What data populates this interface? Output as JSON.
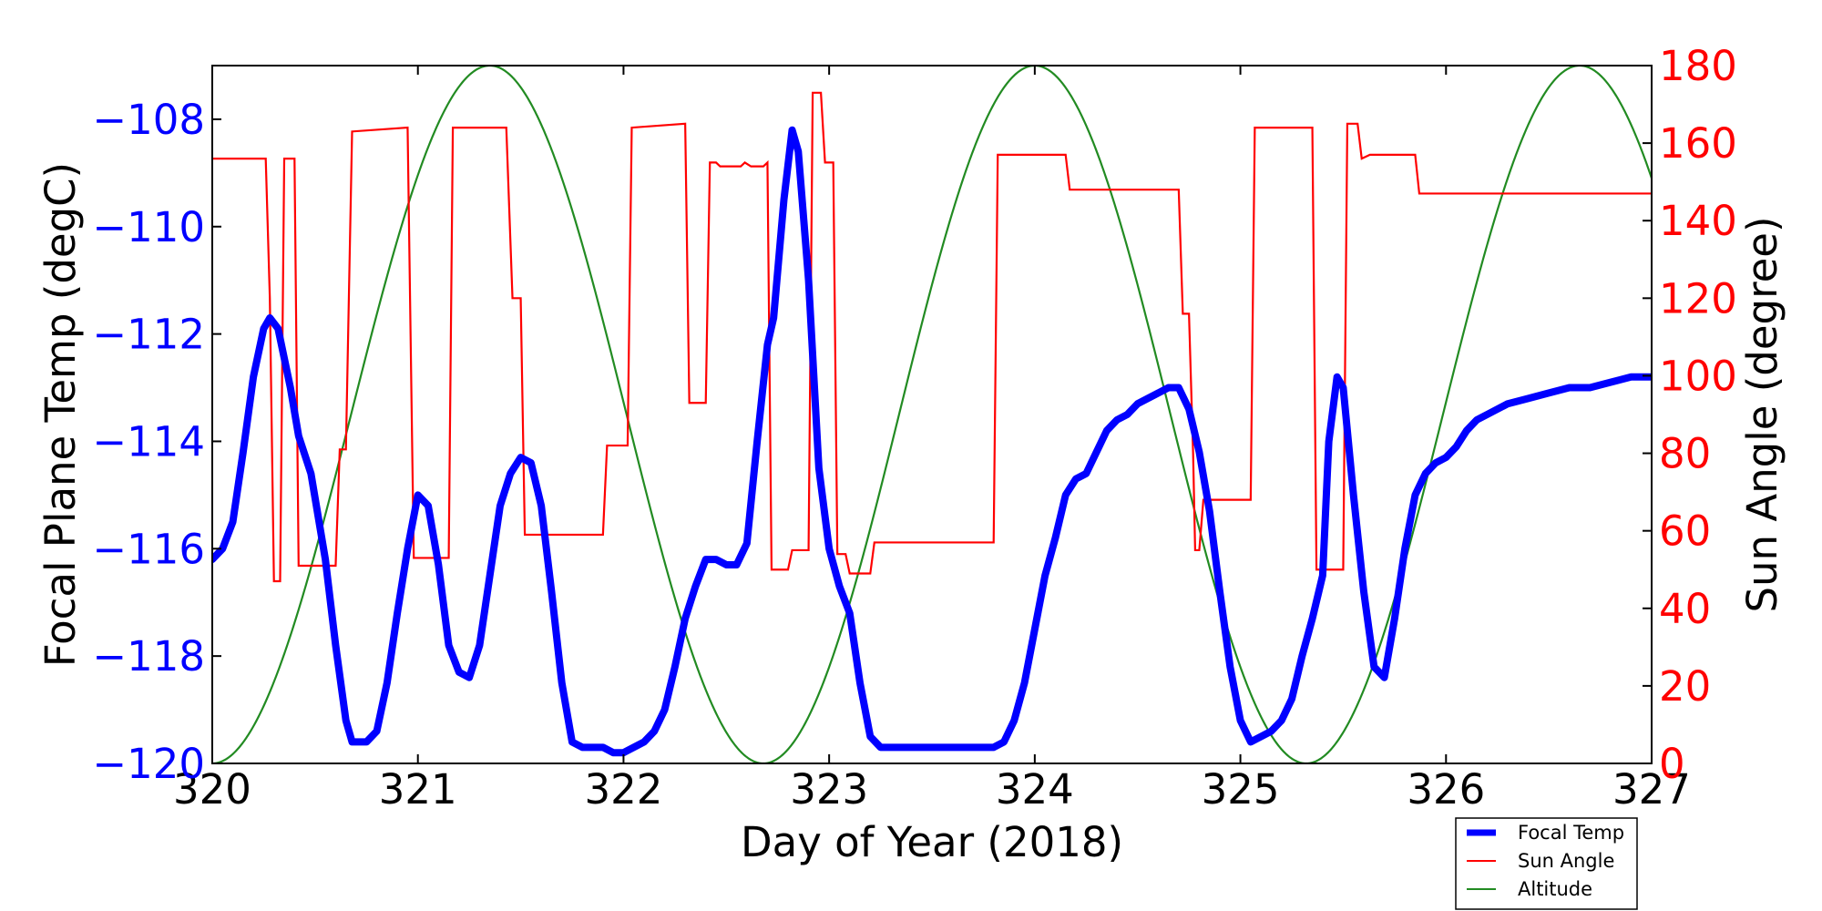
{
  "chart_data": {
    "type": "line",
    "title": "",
    "xlabel": "Day of Year (2018)",
    "ylabel_left": "Focal Plane Temp (degC)",
    "ylabel_right": "Sun Angle (degree)",
    "xlim": [
      320,
      327
    ],
    "ylim_left": [
      -120,
      -107
    ],
    "ylim_right": [
      0,
      180
    ],
    "xticks": [
      "320",
      "321",
      "322",
      "323",
      "324",
      "325",
      "326",
      "327"
    ],
    "yticks_left": [
      "−120",
      "−118",
      "−116",
      "−114",
      "−112",
      "−110",
      "−108"
    ],
    "yticks_right": [
      "0",
      "20",
      "40",
      "60",
      "80",
      "100",
      "120",
      "140",
      "160",
      "180"
    ],
    "grid": false,
    "legend_position": "bottom-right",
    "colors": {
      "focal": "#0000ff",
      "sun": "#ff0000",
      "altitude": "#228b22",
      "axes": "#000000"
    },
    "series": [
      {
        "name": "Focal Temp",
        "axis": "left",
        "points": [
          [
            320.0,
            -116.2
          ],
          [
            320.05,
            -116.0
          ],
          [
            320.1,
            -115.5
          ],
          [
            320.15,
            -114.2
          ],
          [
            320.2,
            -112.8
          ],
          [
            320.25,
            -111.9
          ],
          [
            320.28,
            -111.7
          ],
          [
            320.32,
            -111.9
          ],
          [
            320.38,
            -113.0
          ],
          [
            320.42,
            -113.9
          ],
          [
            320.48,
            -114.6
          ],
          [
            320.55,
            -116.2
          ],
          [
            320.6,
            -117.8
          ],
          [
            320.65,
            -119.2
          ],
          [
            320.68,
            -119.6
          ],
          [
            320.75,
            -119.6
          ],
          [
            320.8,
            -119.4
          ],
          [
            320.85,
            -118.5
          ],
          [
            320.9,
            -117.2
          ],
          [
            320.95,
            -116.0
          ],
          [
            321.0,
            -115.0
          ],
          [
            321.05,
            -115.2
          ],
          [
            321.1,
            -116.3
          ],
          [
            321.15,
            -117.8
          ],
          [
            321.2,
            -118.3
          ],
          [
            321.25,
            -118.4
          ],
          [
            321.3,
            -117.8
          ],
          [
            321.35,
            -116.5
          ],
          [
            321.4,
            -115.2
          ],
          [
            321.45,
            -114.6
          ],
          [
            321.5,
            -114.3
          ],
          [
            321.55,
            -114.4
          ],
          [
            321.6,
            -115.2
          ],
          [
            321.65,
            -116.8
          ],
          [
            321.7,
            -118.5
          ],
          [
            321.75,
            -119.6
          ],
          [
            321.8,
            -119.7
          ],
          [
            321.9,
            -119.7
          ],
          [
            321.95,
            -119.8
          ],
          [
            322.0,
            -119.8
          ],
          [
            322.05,
            -119.7
          ],
          [
            322.1,
            -119.6
          ],
          [
            322.15,
            -119.4
          ],
          [
            322.2,
            -119.0
          ],
          [
            322.25,
            -118.2
          ],
          [
            322.3,
            -117.3
          ],
          [
            322.35,
            -116.7
          ],
          [
            322.4,
            -116.2
          ],
          [
            322.45,
            -116.2
          ],
          [
            322.5,
            -116.3
          ],
          [
            322.55,
            -116.3
          ],
          [
            322.6,
            -115.9
          ],
          [
            322.65,
            -114.0
          ],
          [
            322.7,
            -112.2
          ],
          [
            322.73,
            -111.7
          ],
          [
            322.78,
            -109.5
          ],
          [
            322.82,
            -108.2
          ],
          [
            322.85,
            -108.6
          ],
          [
            322.9,
            -111.0
          ],
          [
            322.95,
            -114.5
          ],
          [
            323.0,
            -116.0
          ],
          [
            323.05,
            -116.7
          ],
          [
            323.1,
            -117.2
          ],
          [
            323.15,
            -118.5
          ],
          [
            323.2,
            -119.5
          ],
          [
            323.25,
            -119.7
          ],
          [
            323.4,
            -119.7
          ],
          [
            323.6,
            -119.7
          ],
          [
            323.8,
            -119.7
          ],
          [
            323.85,
            -119.6
          ],
          [
            323.9,
            -119.2
          ],
          [
            323.95,
            -118.5
          ],
          [
            324.0,
            -117.5
          ],
          [
            324.05,
            -116.5
          ],
          [
            324.1,
            -115.8
          ],
          [
            324.15,
            -115.0
          ],
          [
            324.2,
            -114.7
          ],
          [
            324.25,
            -114.6
          ],
          [
            324.3,
            -114.2
          ],
          [
            324.35,
            -113.8
          ],
          [
            324.4,
            -113.6
          ],
          [
            324.45,
            -113.5
          ],
          [
            324.5,
            -113.3
          ],
          [
            324.55,
            -113.2
          ],
          [
            324.6,
            -113.1
          ],
          [
            324.65,
            -113.0
          ],
          [
            324.7,
            -113.0
          ],
          [
            324.75,
            -113.4
          ],
          [
            324.8,
            -114.2
          ],
          [
            324.85,
            -115.3
          ],
          [
            324.9,
            -116.8
          ],
          [
            324.95,
            -118.2
          ],
          [
            325.0,
            -119.2
          ],
          [
            325.05,
            -119.6
          ],
          [
            325.1,
            -119.5
          ],
          [
            325.15,
            -119.4
          ],
          [
            325.2,
            -119.2
          ],
          [
            325.25,
            -118.8
          ],
          [
            325.3,
            -118.0
          ],
          [
            325.35,
            -117.3
          ],
          [
            325.4,
            -116.5
          ],
          [
            325.43,
            -114.0
          ],
          [
            325.47,
            -112.8
          ],
          [
            325.5,
            -113.0
          ],
          [
            325.55,
            -115.0
          ],
          [
            325.6,
            -116.8
          ],
          [
            325.65,
            -118.2
          ],
          [
            325.7,
            -118.4
          ],
          [
            325.75,
            -117.3
          ],
          [
            325.8,
            -116.0
          ],
          [
            325.85,
            -115.0
          ],
          [
            325.9,
            -114.6
          ],
          [
            325.95,
            -114.4
          ],
          [
            326.0,
            -114.3
          ],
          [
            326.05,
            -114.1
          ],
          [
            326.1,
            -113.8
          ],
          [
            326.15,
            -113.6
          ],
          [
            326.2,
            -113.5
          ],
          [
            326.3,
            -113.3
          ],
          [
            326.4,
            -113.2
          ],
          [
            326.5,
            -113.1
          ],
          [
            326.6,
            -113.0
          ],
          [
            326.7,
            -113.0
          ],
          [
            326.8,
            -112.9
          ],
          [
            326.9,
            -112.8
          ],
          [
            327.0,
            -112.8
          ]
        ]
      },
      {
        "name": "Sun Angle",
        "axis": "right",
        "points": [
          [
            320.0,
            156
          ],
          [
            320.26,
            156
          ],
          [
            320.28,
            120
          ],
          [
            320.3,
            47
          ],
          [
            320.33,
            47
          ],
          [
            320.35,
            156
          ],
          [
            320.4,
            156
          ],
          [
            320.42,
            51
          ],
          [
            320.6,
            51
          ],
          [
            320.62,
            81
          ],
          [
            320.65,
            81
          ],
          [
            320.68,
            163
          ],
          [
            320.95,
            164
          ],
          [
            320.98,
            53
          ],
          [
            321.15,
            53
          ],
          [
            321.17,
            164
          ],
          [
            321.43,
            164
          ],
          [
            321.46,
            120
          ],
          [
            321.5,
            120
          ],
          [
            321.52,
            59
          ],
          [
            321.9,
            59
          ],
          [
            321.92,
            82
          ],
          [
            322.02,
            82
          ],
          [
            322.04,
            164
          ],
          [
            322.3,
            165
          ],
          [
            322.32,
            93
          ],
          [
            322.4,
            93
          ],
          [
            322.42,
            155
          ],
          [
            322.45,
            155
          ],
          [
            322.47,
            154
          ],
          [
            322.57,
            154
          ],
          [
            322.59,
            155
          ],
          [
            322.62,
            154
          ],
          [
            322.68,
            154
          ],
          [
            322.7,
            155
          ],
          [
            322.72,
            50
          ],
          [
            322.8,
            50
          ],
          [
            322.82,
            55
          ],
          [
            322.9,
            55
          ],
          [
            322.92,
            173
          ],
          [
            322.96,
            173
          ],
          [
            322.98,
            155
          ],
          [
            323.02,
            155
          ],
          [
            323.04,
            54
          ],
          [
            323.08,
            54
          ],
          [
            323.1,
            49
          ],
          [
            323.2,
            49
          ],
          [
            323.22,
            57
          ],
          [
            323.8,
            57
          ],
          [
            323.82,
            157
          ],
          [
            324.15,
            157
          ],
          [
            324.17,
            148
          ],
          [
            324.7,
            148
          ],
          [
            324.72,
            116
          ],
          [
            324.75,
            116
          ],
          [
            324.77,
            80
          ],
          [
            324.78,
            55
          ],
          [
            324.8,
            55
          ],
          [
            324.82,
            68
          ],
          [
            325.05,
            68
          ],
          [
            325.07,
            164
          ],
          [
            325.35,
            164
          ],
          [
            325.37,
            50
          ],
          [
            325.5,
            50
          ],
          [
            325.52,
            165
          ],
          [
            325.57,
            165
          ],
          [
            325.59,
            156
          ],
          [
            325.63,
            157
          ],
          [
            325.85,
            157
          ],
          [
            325.87,
            147
          ],
          [
            327.0,
            147
          ]
        ]
      },
      {
        "name": "Altitude",
        "axis": "right",
        "curve": {
          "min": 0,
          "max": 180,
          "troughs": [
            320.0,
            322.68,
            325.32
          ],
          "peaks": [
            321.35,
            324.0,
            326.65
          ]
        }
      }
    ]
  }
}
